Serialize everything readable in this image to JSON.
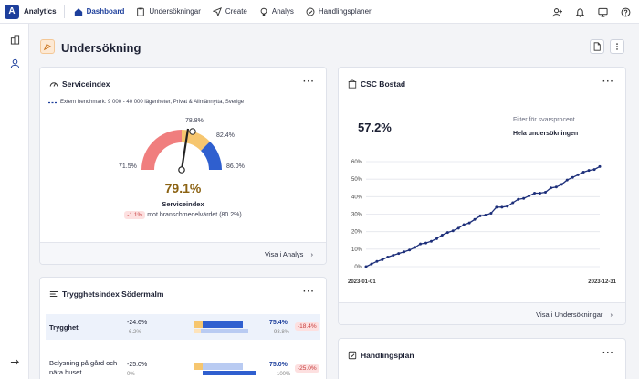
{
  "app": {
    "name": "Analytics"
  },
  "nav": [
    {
      "label": "Dashboard",
      "icon": "home-icon"
    },
    {
      "label": "Undersökningar",
      "icon": "clipboard-icon"
    },
    {
      "label": "Create",
      "icon": "send-icon"
    },
    {
      "label": "Analys",
      "icon": "bulb-icon"
    },
    {
      "label": "Handlingsplaner",
      "icon": "check-circle-icon"
    }
  ],
  "page": {
    "title": "Undersökning"
  },
  "service": {
    "title": "Serviceindex",
    "benchmark": "Extern benchmark: 9 000 - 40 000 lägenheter, Privat & Allmännytta, Sverige",
    "label_min": "71.5%",
    "label_top": "78.8%",
    "label_right": "82.4%",
    "label_max": "86.0%",
    "value": "79.1%",
    "value_label": "Serviceindex",
    "delta": "-1.1%",
    "delta_text": "mot branschmedelvärdet (80.2%)",
    "link": "Visa i Analys"
  },
  "csc": {
    "title": "CSC Bostad",
    "value": "57.2%",
    "filter_label": "Filter för svarsprocent",
    "filter_value": "Hela undersökningen",
    "link": "Visa i Undersökningar"
  },
  "chart_data": {
    "type": "line",
    "title": "",
    "x_start": "2023-01-01",
    "x_end": "2023-12-31",
    "xlabel": "",
    "ylabel": "",
    "ylim": [
      0,
      60
    ],
    "y_ticks": [
      "60%",
      "50%",
      "40%",
      "30%",
      "20%",
      "10%",
      "0%"
    ],
    "grid": true,
    "series": [
      {
        "values": [
          0,
          1.5,
          3,
          4,
          5.5,
          6.5,
          7.5,
          8.5,
          9.5,
          11,
          13,
          13.5,
          14.5,
          16,
          18,
          19.5,
          20.5,
          22,
          24,
          25,
          27,
          29,
          29.5,
          30.5,
          34,
          34,
          34.5,
          36.5,
          38.5,
          39,
          40.5,
          42,
          42,
          42.5,
          45,
          45.5,
          47,
          49.5,
          51,
          52.5,
          54,
          55,
          55.5,
          57.2
        ]
      }
    ],
    "color": "#1d2f7a"
  },
  "trygg": {
    "title": "Trygghetsindex Södermalm",
    "rows": [
      {
        "label": "Trygghet",
        "d1": "-24.6%",
        "d2": "-6.2%",
        "v1": "75.4%",
        "v2": "93.8%",
        "delta": "-18.4%"
      },
      {
        "label": "Belysning på gård och nära huset",
        "d1": "-25.0%",
        "d2": "0%",
        "v1": "75.0%",
        "v2": "100%",
        "delta": "-25.0%"
      }
    ]
  },
  "handling": {
    "title": "Handlingsplan"
  }
}
